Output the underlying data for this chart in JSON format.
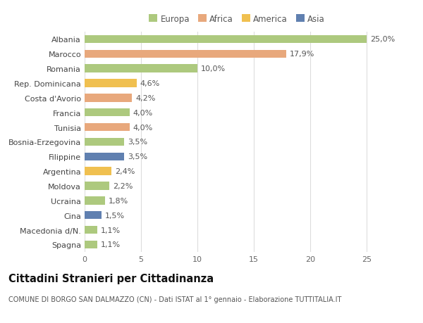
{
  "categories": [
    "Albania",
    "Marocco",
    "Romania",
    "Rep. Dominicana",
    "Costa d'Avorio",
    "Francia",
    "Tunisia",
    "Bosnia-Erzegovina",
    "Filippine",
    "Argentina",
    "Moldova",
    "Ucraina",
    "Cina",
    "Macedonia d/N.",
    "Spagna"
  ],
  "values": [
    25.0,
    17.9,
    10.0,
    4.6,
    4.2,
    4.0,
    4.0,
    3.5,
    3.5,
    2.4,
    2.2,
    1.8,
    1.5,
    1.1,
    1.1
  ],
  "labels": [
    "25,0%",
    "17,9%",
    "10,0%",
    "4,6%",
    "4,2%",
    "4,0%",
    "4,0%",
    "3,5%",
    "3,5%",
    "2,4%",
    "2,2%",
    "1,8%",
    "1,5%",
    "1,1%",
    "1,1%"
  ],
  "continents": [
    "Europa",
    "Africa",
    "Europa",
    "America",
    "Africa",
    "Europa",
    "Africa",
    "Europa",
    "Asia",
    "America",
    "Europa",
    "Europa",
    "Asia",
    "Europa",
    "Europa"
  ],
  "colors": {
    "Europa": "#adc97e",
    "Africa": "#e8a87c",
    "America": "#f0c050",
    "Asia": "#6080b0"
  },
  "xlim": [
    0,
    27
  ],
  "xticks": [
    0,
    5,
    10,
    15,
    20,
    25
  ],
  "title": "Cittadini Stranieri per Cittadinanza",
  "subtitle": "COMUNE DI BORGO SAN DALMAZZO (CN) - Dati ISTAT al 1° gennaio - Elaborazione TUTTITALIA.IT",
  "bg_color": "#ffffff",
  "grid_color": "#dddddd",
  "bar_height": 0.55,
  "label_fontsize": 8,
  "ylabel_fontsize": 8,
  "xlabel_fontsize": 8,
  "title_fontsize": 10.5,
  "subtitle_fontsize": 7,
  "legend_fontsize": 8.5
}
